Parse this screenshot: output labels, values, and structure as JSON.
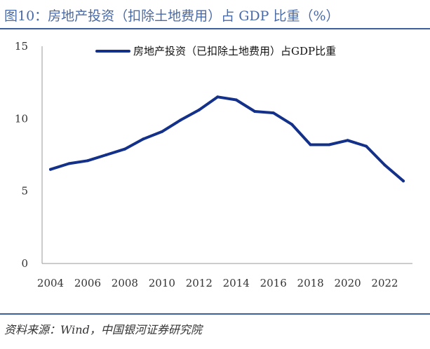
{
  "figure": {
    "title": "图10：房地产投资（扣除土地费用）占 GDP 比重（%）",
    "source": "资料来源：Wind，中国银河证券研究院"
  },
  "colors": {
    "series": "#14318a",
    "accent": "#3d5f9e",
    "title": "#4a6aa6"
  },
  "chart_data": {
    "type": "line",
    "title": "",
    "xlabel": "",
    "ylabel": "",
    "x": [
      2004,
      2005,
      2006,
      2007,
      2008,
      2009,
      2010,
      2011,
      2012,
      2013,
      2014,
      2015,
      2016,
      2017,
      2018,
      2019,
      2020,
      2021,
      2022,
      2023
    ],
    "x_ticks": [
      "2004",
      "2006",
      "2008",
      "2010",
      "2012",
      "2014",
      "2016",
      "2018",
      "2020",
      "2022"
    ],
    "y_ticks": [
      "0",
      "5",
      "10",
      "15"
    ],
    "ylim": [
      0,
      15
    ],
    "grid": false,
    "legend_position": "top-center",
    "series": [
      {
        "name": "房地产投资（已扣除土地费用）占GDP比重",
        "values": [
          6.5,
          6.9,
          7.1,
          7.5,
          7.9,
          8.6,
          9.1,
          9.9,
          10.6,
          11.5,
          11.3,
          10.5,
          10.4,
          9.6,
          8.2,
          8.2,
          8.5,
          8.1,
          6.8,
          5.7
        ]
      }
    ]
  }
}
